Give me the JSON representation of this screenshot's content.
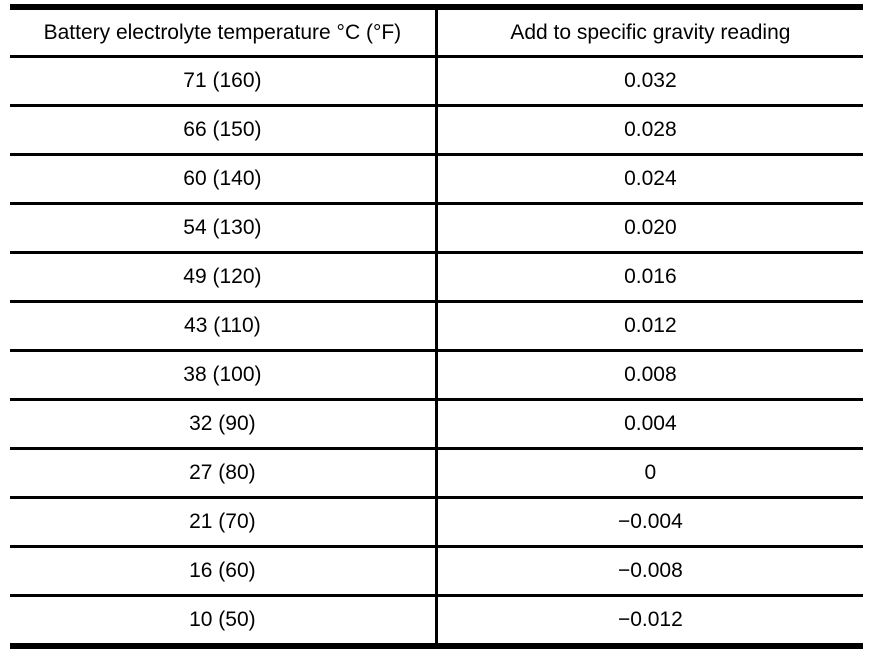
{
  "table": {
    "columns": [
      "Battery electrolyte temperature °C (°F)",
      "Add to specific gravity reading"
    ],
    "rows": [
      [
        "71 (160)",
        "0.032"
      ],
      [
        "66 (150)",
        "0.028"
      ],
      [
        "60 (140)",
        "0.024"
      ],
      [
        "54 (130)",
        "0.020"
      ],
      [
        "49 (120)",
        "0.016"
      ],
      [
        "43 (110)",
        "0.012"
      ],
      [
        "38 (100)",
        "0.008"
      ],
      [
        "32 (90)",
        "0.004"
      ],
      [
        "27 (80)",
        "0"
      ],
      [
        "21 (70)",
        "−0.004"
      ],
      [
        "16 (60)",
        "−0.008"
      ],
      [
        "10 (50)",
        "−0.012"
      ]
    ],
    "colors": {
      "border": "#000000",
      "background": "#ffffff",
      "text": "#000000"
    }
  }
}
